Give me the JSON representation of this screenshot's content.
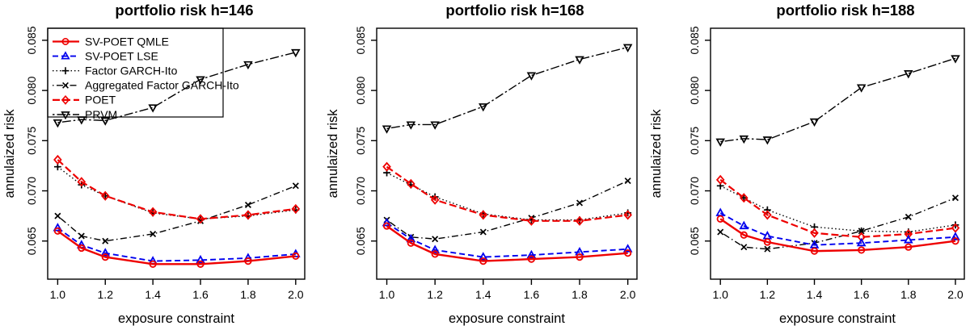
{
  "figure": {
    "ylabel": "annulaized risk",
    "xlabel": "exposure constraint",
    "axis_color": "#000000",
    "background": "#ffffff"
  },
  "legend": {
    "position": "topleft",
    "entries": [
      "SV-POET QMLE",
      "SV-POET LSE",
      "Factor GARCH-Ito",
      "Aggregated Factor GARCH-Ito",
      "POET",
      "PRVM"
    ]
  },
  "series_styles": {
    "SV-POET QMLE": {
      "color": "#ee0000",
      "line": "solid",
      "marker": "circle",
      "width": 2.4
    },
    "SV-POET LSE": {
      "color": "#0000ee",
      "line": "dashed",
      "marker": "triangle-up",
      "width": 1.9
    },
    "Factor GARCH-Ito": {
      "color": "#000000",
      "line": "dotted",
      "marker": "plus",
      "width": 1.4
    },
    "Aggregated Factor GARCH-Ito": {
      "color": "#000000",
      "line": "dotdash",
      "marker": "x",
      "width": 1.4
    },
    "POET": {
      "color": "#ee0000",
      "line": "longdash",
      "marker": "diamond",
      "width": 2.2
    },
    "PRVM": {
      "color": "#000000",
      "line": "twodash",
      "marker": "triangle-down",
      "width": 1.4
    }
  },
  "chart_data": [
    {
      "type": "line",
      "title": "portfolio risk h=146",
      "xlabel": "exposure constraint",
      "ylabel": "annulaized risk",
      "x": [
        1.0,
        1.1,
        1.2,
        1.4,
        1.6,
        1.8,
        2.0
      ],
      "x_ticks": [
        1.0,
        1.2,
        1.4,
        1.6,
        1.8,
        2.0
      ],
      "y_ticks": [
        0.065,
        0.07,
        0.075,
        0.08,
        0.085
      ],
      "xlim": [
        0.958,
        2.038
      ],
      "ylim": [
        0.0612,
        0.0862
      ],
      "grid": false,
      "legend_shown": true,
      "series": [
        {
          "name": "Factor GARCH-Ito",
          "values": [
            0.0724,
            0.0706,
            0.0695,
            0.0678,
            0.0672,
            0.0675,
            0.0681
          ]
        },
        {
          "name": "Aggregated Factor GARCH-Ito",
          "values": [
            0.0675,
            0.0655,
            0.065,
            0.0657,
            0.067,
            0.0686,
            0.0705
          ]
        },
        {
          "name": "PRVM",
          "values": [
            0.0768,
            0.0771,
            0.077,
            0.0783,
            0.0811,
            0.0826,
            0.0838
          ]
        },
        {
          "name": "POET",
          "values": [
            0.0731,
            0.0709,
            0.0695,
            0.0679,
            0.0672,
            0.0676,
            0.0682
          ]
        },
        {
          "name": "SV-POET LSE",
          "values": [
            0.0663,
            0.0646,
            0.0638,
            0.063,
            0.0631,
            0.0633,
            0.0637
          ]
        },
        {
          "name": "SV-POET QMLE",
          "values": [
            0.066,
            0.0643,
            0.0634,
            0.0627,
            0.0627,
            0.063,
            0.0635
          ]
        }
      ]
    },
    {
      "type": "line",
      "title": "portfolio risk h=168",
      "xlabel": "exposure constraint",
      "ylabel": "annulaized risk",
      "x": [
        1.0,
        1.1,
        1.2,
        1.4,
        1.6,
        1.8,
        2.0
      ],
      "x_ticks": [
        1.0,
        1.2,
        1.4,
        1.6,
        1.8,
        2.0
      ],
      "y_ticks": [
        0.065,
        0.07,
        0.075,
        0.08,
        0.085
      ],
      "xlim": [
        0.958,
        2.038
      ],
      "ylim": [
        0.0612,
        0.0862
      ],
      "grid": false,
      "legend_shown": false,
      "series": [
        {
          "name": "Factor GARCH-Ito",
          "values": [
            0.0718,
            0.0706,
            0.0694,
            0.0677,
            0.0671,
            0.0671,
            0.0678
          ]
        },
        {
          "name": "Aggregated Factor GARCH-Ito",
          "values": [
            0.0671,
            0.0654,
            0.0652,
            0.0659,
            0.0673,
            0.0688,
            0.071
          ]
        },
        {
          "name": "PRVM",
          "values": [
            0.0762,
            0.0766,
            0.0766,
            0.0784,
            0.0815,
            0.0831,
            0.0843
          ]
        },
        {
          "name": "POET",
          "values": [
            0.0724,
            0.0707,
            0.0691,
            0.0676,
            0.067,
            0.067,
            0.0676
          ]
        },
        {
          "name": "SV-POET LSE",
          "values": [
            0.0668,
            0.0652,
            0.0641,
            0.0634,
            0.0636,
            0.0639,
            0.0642
          ]
        },
        {
          "name": "SV-POET QMLE",
          "values": [
            0.0665,
            0.0648,
            0.0637,
            0.063,
            0.0632,
            0.0634,
            0.0638
          ]
        }
      ]
    },
    {
      "type": "line",
      "title": "portfolio risk h=188",
      "xlabel": "exposure constraint",
      "ylabel": "annulaized risk",
      "x": [
        1.0,
        1.1,
        1.2,
        1.4,
        1.6,
        1.8,
        2.0
      ],
      "x_ticks": [
        1.0,
        1.2,
        1.4,
        1.6,
        1.8,
        2.0
      ],
      "y_ticks": [
        0.065,
        0.07,
        0.075,
        0.08,
        0.085
      ],
      "xlim": [
        0.958,
        2.038
      ],
      "ylim": [
        0.0612,
        0.0862
      ],
      "grid": false,
      "legend_shown": false,
      "series": [
        {
          "name": "Factor GARCH-Ito",
          "values": [
            0.0705,
            0.0693,
            0.0681,
            0.0664,
            0.066,
            0.0659,
            0.0666
          ]
        },
        {
          "name": "Aggregated Factor GARCH-Ito",
          "values": [
            0.0659,
            0.0644,
            0.0642,
            0.0648,
            0.066,
            0.0674,
            0.0693
          ]
        },
        {
          "name": "PRVM",
          "values": [
            0.0749,
            0.0752,
            0.0751,
            0.0769,
            0.0803,
            0.0817,
            0.0832
          ]
        },
        {
          "name": "POET",
          "values": [
            0.0711,
            0.0693,
            0.0676,
            0.0658,
            0.0654,
            0.0657,
            0.0663
          ]
        },
        {
          "name": "SV-POET LSE",
          "values": [
            0.0678,
            0.0665,
            0.0655,
            0.0646,
            0.0648,
            0.0651,
            0.0654
          ]
        },
        {
          "name": "SV-POET QMLE",
          "values": [
            0.0672,
            0.0656,
            0.0649,
            0.064,
            0.0641,
            0.0644,
            0.065
          ]
        }
      ]
    }
  ]
}
